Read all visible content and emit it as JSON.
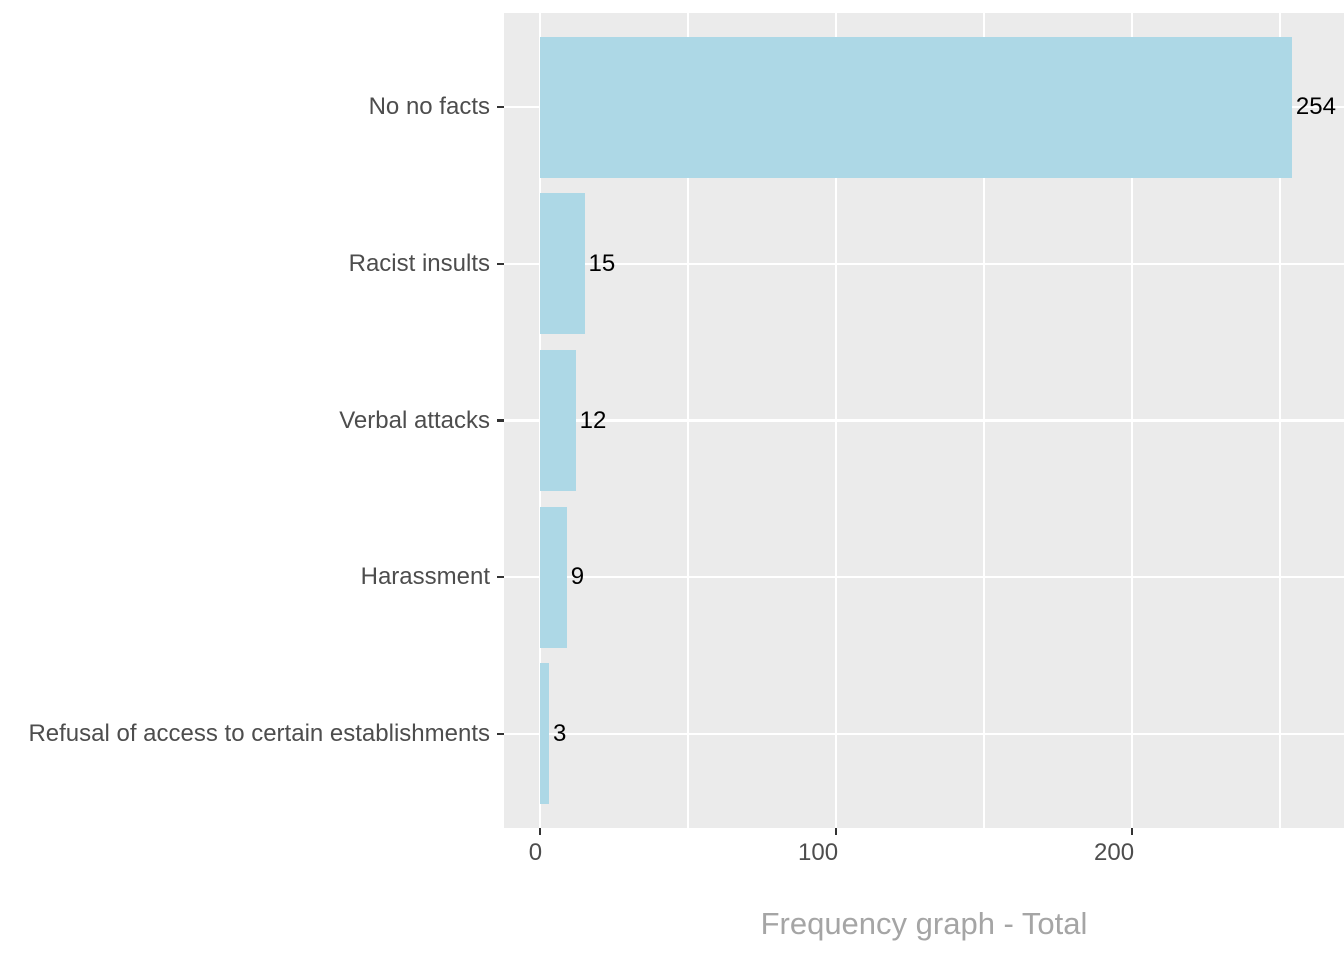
{
  "chart_data": {
    "type": "bar",
    "orientation": "horizontal",
    "title": "",
    "xlabel": "Frequency graph - Total",
    "ylabel": "",
    "categories": [
      "No no facts",
      "Racist insults",
      "Verbal attacks",
      "Harassment",
      "Refusal of access to certain establishments"
    ],
    "values": [
      254,
      15,
      12,
      9,
      3
    ],
    "value_labels": [
      "254",
      "15",
      "12",
      "9",
      "3"
    ],
    "x_ticks": [
      0,
      100,
      200
    ],
    "x_tick_labels": [
      "0",
      "100",
      "200"
    ],
    "x_minor_ticks": [
      50,
      150,
      250
    ],
    "xlim": [
      -12.2,
      271.6
    ],
    "grid": true,
    "legend": false,
    "colors": {
      "bar_fill": "#ADD8E6",
      "panel_background": "#EBEBEB",
      "gridline": "#FFFFFF",
      "axis_text": "#4D4D4D",
      "tick_mark": "#333333",
      "value_label": "#000000",
      "axis_title": "#A5A5A5",
      "page_background": "#FFFFFF"
    }
  }
}
